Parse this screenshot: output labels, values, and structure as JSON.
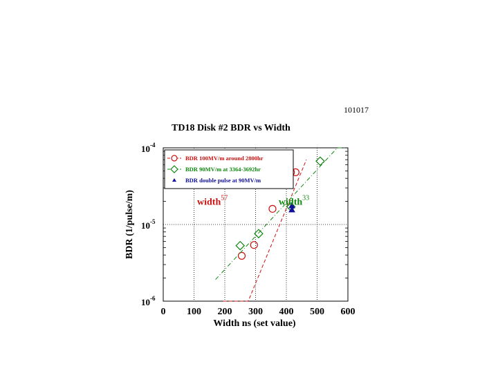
{
  "chart_data": {
    "type": "scatter",
    "date_label": "101017",
    "title": "TD18  Disk  #2   BDR vs Width",
    "xlabel": "Width  ns (set value)",
    "ylabel": "BDR (1/pulse/m)",
    "xlim": [
      0,
      600
    ],
    "ylim": [
      1e-06,
      0.0001
    ],
    "yscale": "log",
    "grid": true,
    "x_ticks": [
      0,
      100,
      200,
      300,
      400,
      500,
      600
    ],
    "x_tick_labels": [
      "0",
      "100",
      "200",
      "300",
      "400",
      "500",
      "600"
    ],
    "y_ticks": [
      1e-06,
      1e-05,
      0.0001
    ],
    "y_tick_labels": [
      {
        "base": "10",
        "exp": "-6"
      },
      {
        "base": "10",
        "exp": "-5"
      },
      {
        "base": "10",
        "exp": "-4"
      }
    ],
    "legend_position": "top-left",
    "series": [
      {
        "name": "BDR  100MV/m around 2800hr",
        "color": "#cc1111",
        "marker": "circle",
        "points": [
          [
            255,
            3.9e-06
          ],
          [
            295,
            5.4e-06
          ],
          [
            355,
            1.6e-05
          ],
          [
            415,
            4.8e-05
          ],
          [
            430,
            4.8e-05
          ]
        ],
        "fit": {
          "a": 2e-09,
          "b": 0.0225,
          "x_from": 195,
          "x_to": 465
        }
      },
      {
        "name": "BDR  90MV/m at 3364-3692hr",
        "color": "#118811",
        "marker": "diamond",
        "points": [
          [
            250,
            5.3e-06
          ],
          [
            310,
            7.6e-06
          ],
          [
            415,
            1.7e-05
          ],
          [
            510,
            6.7e-05
          ]
        ],
        "fit": {
          "a": 3.5e-07,
          "b": 0.01,
          "x_from": 170,
          "x_to": 590
        }
      },
      {
        "name": "BDR  double pulse at 90MV/m",
        "color": "#111199",
        "marker": "triangle",
        "points": [
          [
            418,
            1.55e-05
          ],
          [
            418,
            1.75e-05
          ]
        ]
      }
    ],
    "annotations": [
      {
        "base": "width",
        "exp": "57",
        "color": "#cc1111",
        "x": 200,
        "y": 2.05e-05
      },
      {
        "base": "width",
        "exp": "33",
        "color": "#118811",
        "x": 465,
        "y": 2.05e-05
      }
    ]
  }
}
